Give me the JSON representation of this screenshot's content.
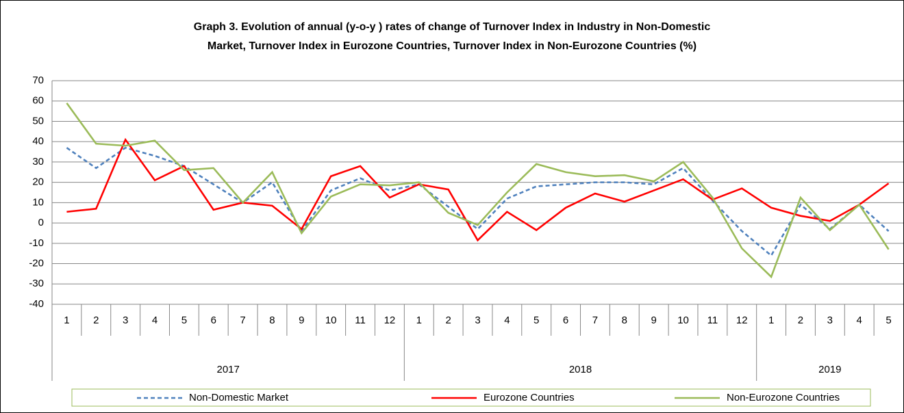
{
  "chart_data": {
    "type": "line",
    "title": [
      "Graph 3. Evolution of annual (y-o-y ) rates  of change of Turnover Index in Industry  in Non-Domestic",
      "Market,  Turnover Index in Eurozone Countries, Turnover Index in Non-Eurozone Countries (%)"
    ],
    "groups": [
      {
        "label": "2017",
        "months": [
          "1",
          "2",
          "3",
          "4",
          "5",
          "6",
          "7",
          "8",
          "9",
          "10",
          "11",
          "12"
        ]
      },
      {
        "label": "2018",
        "months": [
          "1",
          "2",
          "3",
          "4",
          "5",
          "6",
          "7",
          "8",
          "9",
          "10",
          "11",
          "12"
        ]
      },
      {
        "label": "2019",
        "months": [
          "1",
          "2",
          "3",
          "4",
          "5"
        ]
      }
    ],
    "series": [
      {
        "name": "Non-Domestic Market",
        "color": "#4f81bd",
        "dash": true,
        "values": [
          37,
          27,
          37,
          33,
          28,
          19,
          10,
          20,
          -4,
          16,
          22,
          16,
          19,
          8,
          -3,
          12,
          18,
          19,
          20,
          20,
          19,
          27,
          11,
          -4,
          -16,
          9,
          -3,
          9,
          -4
        ]
      },
      {
        "name": "Eurozone Countries",
        "color": "#ff0000",
        "dash": false,
        "values": [
          5.5,
          7,
          41,
          21,
          28,
          6.5,
          10,
          8.5,
          -3,
          23,
          28,
          12.5,
          19,
          16.5,
          -8.5,
          5.5,
          -3.5,
          7.5,
          14.5,
          10.5,
          16,
          21.5,
          11.5,
          17,
          7.5,
          3.5,
          1,
          9,
          19.5
        ]
      },
      {
        "name": "Non-Eurozone Countries",
        "color": "#9bbb59",
        "dash": false,
        "values": [
          59,
          39,
          38,
          40.5,
          26,
          27,
          10,
          25,
          -5,
          13,
          19,
          18.5,
          20,
          5,
          -1,
          15,
          29,
          25,
          23,
          23.5,
          20.5,
          30,
          12.5,
          -12.5,
          -26.5,
          12.5,
          -3.5,
          9,
          -13
        ]
      }
    ],
    "ylim": [
      -40,
      70
    ],
    "yticks": [
      -40,
      -30,
      -20,
      -10,
      0,
      10,
      20,
      30,
      40,
      50,
      60,
      70
    ],
    "grid": true
  }
}
